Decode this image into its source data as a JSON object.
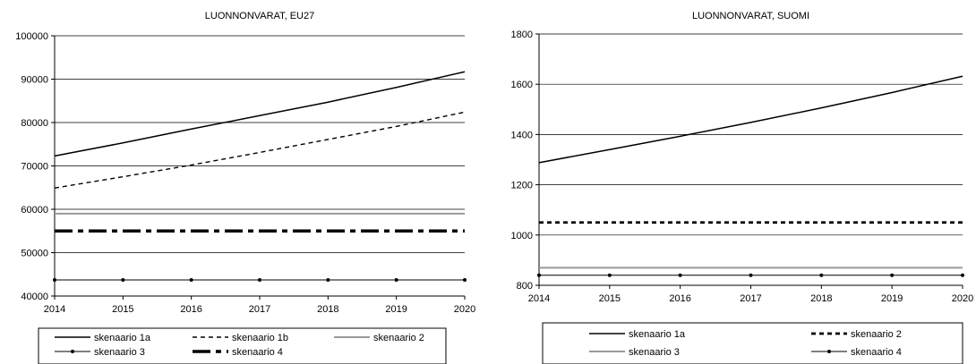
{
  "chart_data": [
    {
      "type": "line",
      "title": "LUONNONVARAT, EU27",
      "xlabel": "",
      "ylabel": "",
      "x": [
        2014,
        2015,
        2016,
        2017,
        2018,
        2019,
        2020
      ],
      "ylim": [
        40000,
        100000
      ],
      "yticks": [
        40000,
        50000,
        60000,
        70000,
        80000,
        90000,
        100000
      ],
      "grid": "horizontal",
      "legend_position": "bottom",
      "series": [
        {
          "name": "skenaario 1a",
          "style": "solid",
          "marker": "none",
          "color": "#000000",
          "values": [
            72300,
            75300,
            78500,
            81600,
            84700,
            88100,
            91700
          ]
        },
        {
          "name": "skenaario 1b",
          "style": "dashed",
          "marker": "none",
          "color": "#000000",
          "values": [
            64900,
            67500,
            70200,
            73100,
            76100,
            79100,
            82400
          ]
        },
        {
          "name": "skenaario 2",
          "style": "solid",
          "marker": "none",
          "color": "#999999",
          "values": [
            59000,
            59000,
            59000,
            59000,
            59000,
            59000,
            59000
          ]
        },
        {
          "name": "skenaario 3",
          "style": "solid",
          "marker": "dot",
          "color": "#000000",
          "values": [
            43700,
            43700,
            43700,
            43700,
            43700,
            43700,
            43700
          ]
        },
        {
          "name": "skenaario 4",
          "style": "dashdot",
          "marker": "none",
          "color": "#000000",
          "values": [
            55000,
            55000,
            55000,
            55000,
            55000,
            55000,
            55000
          ]
        }
      ]
    },
    {
      "type": "line",
      "title": "LUONNONVARAT, SUOMI",
      "xlabel": "",
      "ylabel": "",
      "x": [
        2014,
        2015,
        2016,
        2017,
        2018,
        2019,
        2020
      ],
      "ylim": [
        800,
        1800
      ],
      "yticks": [
        800,
        1000,
        1200,
        1400,
        1600,
        1800
      ],
      "grid": "horizontal",
      "legend_position": "bottom",
      "series": [
        {
          "name": "skenaario 1a",
          "style": "solid",
          "marker": "none",
          "color": "#000000",
          "values": [
            1288,
            1340,
            1393,
            1448,
            1506,
            1567,
            1632
          ]
        },
        {
          "name": "skenaario 2",
          "style": "dotted",
          "marker": "none",
          "color": "#000000",
          "values": [
            1050,
            1050,
            1050,
            1050,
            1050,
            1050,
            1050
          ]
        },
        {
          "name": "skenaario 3",
          "style": "solid",
          "marker": "none",
          "color": "#999999",
          "values": [
            870,
            870,
            870,
            870,
            870,
            870,
            870
          ]
        },
        {
          "name": "skenaario 4",
          "style": "solid",
          "marker": "dot",
          "color": "#000000",
          "values": [
            840,
            840,
            840,
            840,
            840,
            840,
            840
          ]
        }
      ]
    }
  ]
}
